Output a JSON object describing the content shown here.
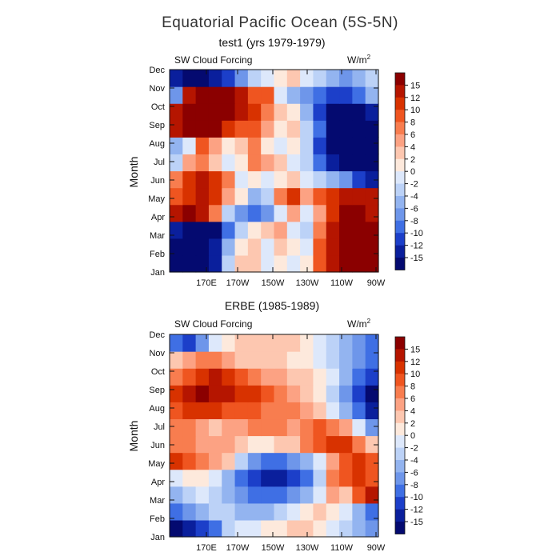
{
  "chart_data": {
    "type": "heatmap",
    "title": "Equatorial Pacific Ocean (5S-5N)",
    "colorbar": {
      "levels": [
        "15",
        "12",
        "10",
        "8",
        "6",
        "4",
        "2",
        "0",
        "-2",
        "-4",
        "-6",
        "-8",
        "-10",
        "-12",
        "-15"
      ],
      "colors": [
        "#8b0000",
        "#b51500",
        "#d83200",
        "#ef5520",
        "#f87d4f",
        "#fca283",
        "#fdc7b0",
        "#fde9dc",
        "#dde8fb",
        "#bcd2f7",
        "#93b4f0",
        "#6e96ea",
        "#3f6fe4",
        "#1c3fc9",
        "#0a1f9c",
        "#040a70"
      ]
    },
    "panels": [
      {
        "subtitle": "test1 (yrs 1979-1979)",
        "variable": "SW Cloud Forcing",
        "units": "W/m",
        "units_sup": "2",
        "ylabel": "Month",
        "y_ticks": [
          "Jan",
          "Feb",
          "Mar",
          "Apr",
          "May",
          "Jun",
          "Jul",
          "Aug",
          "Sep",
          "Oct",
          "Nov",
          "Dec"
        ],
        "x_ticks": [
          "170E",
          "170W",
          "150W",
          "130W",
          "110W",
          "90W"
        ],
        "grid": [
          [
            -16,
            -16,
            -16,
            -14,
            -4,
            2,
            2,
            -2,
            0,
            -2,
            0,
            8,
            14,
            16,
            16,
            16
          ],
          [
            -16,
            -16,
            -16,
            -14,
            -6,
            0,
            2,
            -2,
            2,
            0,
            -2,
            8,
            14,
            16,
            16,
            16
          ],
          [
            -14,
            -16,
            -16,
            -16,
            -10,
            -4,
            0,
            2,
            4,
            -2,
            -4,
            6,
            12,
            16,
            16,
            16
          ],
          [
            14,
            16,
            12,
            6,
            -4,
            -8,
            -10,
            -8,
            -2,
            4,
            -2,
            4,
            10,
            16,
            16,
            14
          ],
          [
            8,
            10,
            12,
            10,
            4,
            0,
            -6,
            -4,
            6,
            10,
            4,
            8,
            10,
            14,
            14,
            12
          ],
          [
            6,
            10,
            14,
            10,
            6,
            -2,
            0,
            -2,
            0,
            2,
            -2,
            -4,
            -6,
            -8,
            -12,
            -14
          ],
          [
            -4,
            4,
            6,
            2,
            -2,
            0,
            6,
            4,
            2,
            -2,
            -4,
            -10,
            -14,
            -16,
            -16,
            -16
          ],
          [
            -6,
            -2,
            8,
            4,
            0,
            2,
            6,
            0,
            -2,
            0,
            -4,
            -12,
            -16,
            -16,
            -16,
            -16
          ],
          [
            14,
            16,
            16,
            16,
            10,
            8,
            8,
            4,
            0,
            2,
            -4,
            -10,
            -16,
            -16,
            -16,
            -16
          ],
          [
            12,
            16,
            16,
            16,
            16,
            12,
            10,
            6,
            2,
            0,
            -6,
            -12,
            -16,
            -16,
            -16,
            -14
          ],
          [
            -8,
            14,
            16,
            16,
            16,
            12,
            8,
            8,
            -2,
            -6,
            -8,
            -10,
            -12,
            -12,
            -10,
            -6
          ],
          [
            -14,
            -16,
            -16,
            -14,
            -12,
            -8,
            -4,
            -2,
            0,
            2,
            -2,
            -4,
            -6,
            -8,
            -6,
            -4
          ]
        ]
      },
      {
        "subtitle": "ERBE (1985-1989)",
        "variable": "SW Cloud Forcing",
        "units": "W/m",
        "units_sup": "2",
        "ylabel": "Month",
        "y_ticks": [
          "Jan",
          "Feb",
          "Mar",
          "Apr",
          "May",
          "Jun",
          "Jul",
          "Aug",
          "Sep",
          "Oct",
          "Nov",
          "Dec"
        ],
        "x_ticks": [
          "170E",
          "170W",
          "150W",
          "130W",
          "110W",
          "90W"
        ],
        "grid": [
          [
            -16,
            -14,
            -12,
            -10,
            -4,
            -2,
            -2,
            0,
            0,
            2,
            2,
            0,
            -2,
            -4,
            -6,
            -8
          ],
          [
            -10,
            -8,
            -6,
            -4,
            -4,
            -6,
            -6,
            -6,
            -4,
            -2,
            0,
            2,
            0,
            -2,
            -6,
            -10
          ],
          [
            -6,
            -4,
            -2,
            -4,
            -6,
            -8,
            -10,
            -10,
            -10,
            -8,
            -6,
            -2,
            4,
            2,
            8,
            12
          ],
          [
            -2,
            0,
            0,
            -2,
            -6,
            -10,
            -12,
            -14,
            -14,
            -12,
            -10,
            -4,
            6,
            8,
            10,
            8
          ],
          [
            10,
            8,
            6,
            4,
            2,
            -4,
            -8,
            -10,
            -10,
            -8,
            -6,
            -2,
            4,
            8,
            10,
            8
          ],
          [
            6,
            6,
            4,
            4,
            4,
            2,
            0,
            0,
            2,
            2,
            6,
            8,
            10,
            10,
            6,
            2
          ],
          [
            6,
            6,
            4,
            2,
            4,
            4,
            6,
            6,
            6,
            4,
            6,
            8,
            6,
            4,
            -2,
            -8
          ],
          [
            8,
            10,
            10,
            10,
            8,
            8,
            8,
            6,
            6,
            6,
            4,
            2,
            -2,
            -6,
            -10,
            -14
          ],
          [
            10,
            14,
            16,
            14,
            12,
            10,
            10,
            8,
            6,
            4,
            2,
            0,
            -4,
            -8,
            -12,
            -16
          ],
          [
            6,
            8,
            10,
            12,
            10,
            8,
            6,
            4,
            4,
            2,
            2,
            0,
            -2,
            -6,
            -10,
            -12
          ],
          [
            2,
            4,
            6,
            6,
            4,
            2,
            2,
            2,
            2,
            0,
            0,
            -2,
            -4,
            -6,
            -8,
            -10
          ],
          [
            -10,
            -12,
            -8,
            -2,
            0,
            2,
            2,
            2,
            2,
            2,
            0,
            -2,
            -4,
            -6,
            -8,
            -10
          ]
        ]
      }
    ]
  }
}
